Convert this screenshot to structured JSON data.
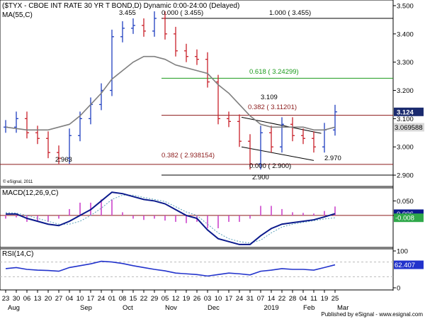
{
  "header": {
    "title": "($TYX - CBOE INT RATE 30 YR T BOND,D) Dynamic 0:00-24:00 (Delayed)",
    "ma_label": "MA(55,C)",
    "esignal_note": "© eSignal, 2011",
    "footer": "Published by eSignal - www.esignal.com"
  },
  "colors": {
    "up": "#1f3fbf",
    "down": "#c8202a",
    "ma": "#7f7f7f",
    "fib_line": "#8b1a1a",
    "fib_green": "#1a9a1a",
    "macd_line": "#0b1a8c",
    "signal_line": "#5aa0b8",
    "hist": "#cc44cc",
    "rsi_line": "#2233cc",
    "badge_price": "#1a2a6e"
  },
  "panels": {
    "macd_label": "MACD(12,26,9,C)",
    "rsi_label": "RSI(14,C)"
  },
  "x_axis": {
    "day_labels": [
      "23",
      "30",
      "06",
      "13",
      "20",
      "27",
      "04",
      "10",
      "17",
      "24",
      "01",
      "08",
      "15",
      "22",
      "29",
      "05",
      "12",
      "19",
      "26",
      "03",
      "10",
      "17",
      "24",
      "31",
      "07",
      "14",
      "22",
      "28",
      "04",
      "11",
      "19",
      "25"
    ],
    "month_labels": [
      "Aug",
      "Sep",
      "Oct",
      "Nov",
      "Dec",
      "2019",
      "Feb",
      "Mar"
    ]
  },
  "price_axis": {
    "ticks": [
      "3.500",
      "3.400",
      "3.300",
      "3.200",
      "3.100",
      "3.000",
      "2.900"
    ],
    "last_price": "3.124",
    "ma_value": "3.069588"
  },
  "macd_axis": {
    "ticks": [
      "0.050",
      "0.000"
    ],
    "macd_value": "0.006",
    "signal_value": "-0.008"
  },
  "rsi_axis": {
    "ticks": [
      "100",
      "0"
    ],
    "value": "62.407"
  },
  "annotations": {
    "fib_1000": "1.000 ( 3.455)",
    "fib_618": "0.618 ( 3.24299)",
    "fib_382_top": "0.382 ( 3.11201)",
    "fib_382_bottom": "0.382 ( 2.938154)",
    "fib_000_bottom": "0.000 ( 2.900)",
    "high_price": "3.455",
    "high_fib": "0.000 ( 3.455)",
    "label_3109": "3.109",
    "label_2963": "2.963",
    "label_2970": "2.970",
    "label_2900": "2.900"
  },
  "chart_data": {
    "type": "candlestick",
    "title": "($TYX - CBOE INT RATE 30 YR T BOND,D) Dynamic 0:00-24:00 (Delayed)",
    "ylim": [
      2.86,
      3.52
    ],
    "x": [
      "23",
      "30",
      "06",
      "13",
      "20",
      "27",
      "04",
      "10",
      "17",
      "24",
      "01",
      "08",
      "15",
      "22",
      "29",
      "05",
      "12",
      "19",
      "26",
      "03",
      "10",
      "17",
      "24",
      "31",
      "07",
      "14",
      "22",
      "28",
      "04",
      "11",
      "19",
      "25"
    ],
    "series": [
      {
        "name": "price",
        "values": [
          3.07,
          3.1,
          3.05,
          3.03,
          2.98,
          2.96,
          3.04,
          3.1,
          3.15,
          3.2,
          3.39,
          3.42,
          3.43,
          3.41,
          3.455,
          3.4,
          3.34,
          3.32,
          3.31,
          3.23,
          3.1,
          3.09,
          3.02,
          2.94,
          3.05,
          3.0,
          3.08,
          3.04,
          3.03,
          3.0,
          3.06,
          3.124
        ]
      },
      {
        "name": "MA(55,C)",
        "values": [
          3.07,
          3.065,
          3.06,
          3.06,
          3.06,
          3.07,
          3.08,
          3.11,
          3.15,
          3.19,
          3.24,
          3.27,
          3.3,
          3.32,
          3.32,
          3.31,
          3.29,
          3.28,
          3.27,
          3.26,
          3.22,
          3.19,
          3.15,
          3.11,
          3.08,
          3.07,
          3.07,
          3.07,
          3.07,
          3.06,
          3.06,
          3.07
        ]
      }
    ],
    "fibonacci": [
      {
        "level": "1.000",
        "value": 3.455
      },
      {
        "level": "0.618",
        "value": 3.24299
      },
      {
        "level": "0.382",
        "value": 3.11201
      },
      {
        "level": "0.382",
        "value": 2.938154
      },
      {
        "level": "0.000",
        "value": 2.9
      }
    ],
    "macd": {
      "label": "MACD(12,26,9,C)",
      "ylim": [
        -0.11,
        0.095
      ],
      "macd": [
        0.005,
        0.005,
        -0.01,
        -0.02,
        -0.03,
        -0.035,
        -0.02,
        0.0,
        0.02,
        0.05,
        0.08,
        0.075,
        0.065,
        0.055,
        0.05,
        0.04,
        0.02,
        0.0,
        -0.01,
        -0.05,
        -0.08,
        -0.09,
        -0.1,
        -0.1,
        -0.07,
        -0.045,
        -0.03,
        -0.025,
        -0.02,
        -0.015,
        -0.005,
        0.006
      ],
      "signal": [
        0.01,
        0.008,
        0.0,
        -0.01,
        -0.02,
        -0.03,
        -0.03,
        -0.02,
        0.0,
        0.025,
        0.055,
        0.07,
        0.07,
        0.062,
        0.055,
        0.048,
        0.03,
        0.012,
        0.0,
        -0.03,
        -0.06,
        -0.08,
        -0.09,
        -0.095,
        -0.085,
        -0.06,
        -0.04,
        -0.03,
        -0.024,
        -0.018,
        -0.012,
        -0.008
      ]
    },
    "rsi": {
      "label": "RSI(14,C)",
      "ylim": [
        0,
        100
      ],
      "values": [
        52,
        55,
        50,
        48,
        47,
        45,
        55,
        60,
        65,
        72,
        70,
        66,
        60,
        55,
        50,
        46,
        40,
        38,
        36,
        32,
        36,
        40,
        38,
        35,
        45,
        48,
        52,
        50,
        50,
        48,
        55,
        62.407
      ]
    }
  }
}
